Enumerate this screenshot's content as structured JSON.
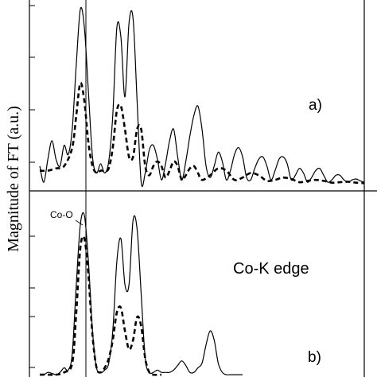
{
  "chart_data": [
    {
      "type": "line",
      "panel_label": "a)",
      "ylabel": "Magnitude  of  FT  (a.u.)",
      "series": [
        {
          "style": "solid",
          "x": [
            0.0,
            0.05,
            0.1,
            0.15,
            0.2,
            0.25,
            0.3,
            0.35,
            0.4,
            0.45,
            0.5,
            0.55,
            0.6,
            0.65,
            0.7,
            0.75,
            0.8,
            0.85,
            0.9,
            0.95,
            1.0,
            1.05,
            1.1,
            1.15,
            1.2,
            1.25,
            1.3,
            1.35,
            1.4,
            1.45,
            1.5,
            1.55,
            1.6,
            1.65,
            1.7,
            1.75,
            1.8,
            1.85,
            1.9,
            1.95,
            2.0,
            2.05,
            2.1,
            2.15,
            2.2,
            2.25,
            2.3,
            2.35,
            2.4,
            2.45,
            2.5,
            2.55,
            2.6,
            2.65,
            2.7,
            2.75,
            2.8,
            2.85,
            2.9,
            2.95,
            3.0,
            3.05,
            3.1,
            3.15,
            3.2,
            3.25,
            3.3,
            3.35,
            3.4,
            3.45,
            3.5,
            3.55,
            3.6,
            3.65,
            3.7,
            3.75,
            3.8,
            3.85,
            3.9,
            3.95,
            4.0
          ],
          "y": [
            0.4,
            0.05,
            0.55,
            0.95,
            0.55,
            0.4,
            0.85,
            0.65,
            1.2,
            2.6,
            3.8,
            3.4,
            2.0,
            0.6,
            0.25,
            0.45,
            0.25,
            0.5,
            1.5,
            3.4,
            3.2,
            1.9,
            3.5,
            3.6,
            1.8,
            0.05,
            0.25,
            0.75,
            0.85,
            0.55,
            0.1,
            0.45,
            0.95,
            1.2,
            0.6,
            0.1,
            0.5,
            1.05,
            1.5,
            1.7,
            1.2,
            0.4,
            0.15,
            0.4,
            0.7,
            0.5,
            0.1,
            0.3,
            0.65,
            0.8,
            0.6,
            0.15,
            0.1,
            0.35,
            0.55,
            0.6,
            0.4,
            0.1,
            0.3,
            0.55,
            0.6,
            0.45,
            0.1,
            0.2,
            0.35,
            0.25,
            0.05,
            0.15,
            0.3,
            0.35,
            0.2,
            0.05,
            0.1,
            0.2,
            0.2,
            0.1,
            0.05,
            0.1,
            0.12,
            0.08,
            0.05
          ]
        },
        {
          "style": "dashed",
          "x": [
            0.0,
            0.1,
            0.2,
            0.3,
            0.4,
            0.45,
            0.5,
            0.55,
            0.6,
            0.65,
            0.7,
            0.75,
            0.8,
            0.85,
            0.9,
            0.95,
            1.0,
            1.05,
            1.1,
            1.15,
            1.2,
            1.25,
            1.3,
            1.35,
            1.4,
            1.45,
            1.5,
            1.55,
            1.6,
            1.65,
            1.7,
            1.75,
            1.8,
            1.85,
            1.9,
            1.95,
            2.0,
            2.1,
            2.2,
            2.3,
            2.4,
            2.5,
            2.6,
            2.7,
            2.8,
            2.9,
            3.0,
            3.1,
            3.2,
            3.3,
            3.4,
            3.5,
            3.6,
            3.7,
            3.8,
            3.9,
            4.0
          ],
          "y": [
            0.3,
            0.3,
            0.35,
            0.4,
            0.8,
            1.5,
            2.2,
            1.8,
            0.9,
            0.4,
            0.25,
            0.3,
            0.3,
            0.35,
            0.8,
            1.6,
            1.7,
            1.2,
            0.6,
            0.6,
            1.2,
            1.2,
            0.4,
            0.2,
            0.4,
            0.5,
            0.4,
            0.15,
            0.3,
            0.5,
            0.4,
            0.1,
            0.2,
            0.35,
            0.4,
            0.25,
            0.1,
            0.2,
            0.35,
            0.3,
            0.1,
            0.15,
            0.25,
            0.2,
            0.08,
            0.1,
            0.15,
            0.12,
            0.05,
            0.08,
            0.1,
            0.08,
            0.04,
            0.05,
            0.06,
            0.04,
            0.03
          ]
        }
      ]
    },
    {
      "type": "line",
      "panel_label": "b)",
      "annotations": [
        "Co-O",
        "Co-K edge"
      ],
      "series": [
        {
          "style": "solid",
          "x": [
            0.0,
            0.05,
            0.1,
            0.15,
            0.2,
            0.25,
            0.3,
            0.35,
            0.4,
            0.45,
            0.5,
            0.55,
            0.6,
            0.65,
            0.7,
            0.75,
            0.8,
            0.85,
            0.9,
            0.95,
            1.0,
            1.05,
            1.1,
            1.15,
            1.2,
            1.25,
            1.3,
            1.35,
            1.4,
            1.45,
            1.5,
            1.55,
            1.6,
            1.65,
            1.7,
            1.75,
            1.8,
            1.85,
            1.9,
            1.95,
            2.0,
            2.05,
            2.1,
            2.15,
            2.2,
            2.25,
            2.3,
            2.35,
            2.4,
            2.45,
            2.5
          ],
          "y": [
            0.05,
            0.05,
            0.1,
            0.08,
            0.05,
            0.1,
            0.2,
            0.15,
            0.5,
            2.0,
            3.3,
            3.5,
            2.5,
            1.0,
            0.2,
            0.1,
            0.15,
            0.3,
            1.0,
            2.5,
            3.0,
            2.0,
            2.0,
            3.4,
            3.2,
            1.8,
            0.4,
            0.1,
            0.1,
            0.15,
            0.1,
            0.1,
            0.1,
            0.15,
            0.25,
            0.35,
            0.25,
            0.1,
            0.1,
            0.2,
            0.3,
            0.7,
            1.0,
            0.8,
            0.3,
            0.1,
            0.05,
            0.05,
            0.05,
            0.05,
            0.05
          ]
        },
        {
          "style": "dashed",
          "x": [
            0.0,
            0.1,
            0.2,
            0.3,
            0.4,
            0.45,
            0.5,
            0.55,
            0.6,
            0.65,
            0.7,
            0.75,
            0.8,
            0.85,
            0.9,
            0.95,
            1.0,
            1.05,
            1.1,
            1.15,
            1.2,
            1.25,
            1.3,
            1.35,
            1.4,
            1.5
          ],
          "y": [
            0.05,
            0.05,
            0.05,
            0.1,
            0.3,
            1.4,
            2.8,
            3.0,
            2.2,
            0.9,
            0.2,
            0.1,
            0.2,
            0.4,
            0.8,
            1.4,
            1.5,
            1.0,
            0.6,
            0.8,
            1.3,
            1.1,
            0.4,
            0.1,
            0.05,
            0.05
          ]
        }
      ]
    }
  ],
  "colors": {
    "line": "#000000",
    "background": "#ffffff"
  }
}
